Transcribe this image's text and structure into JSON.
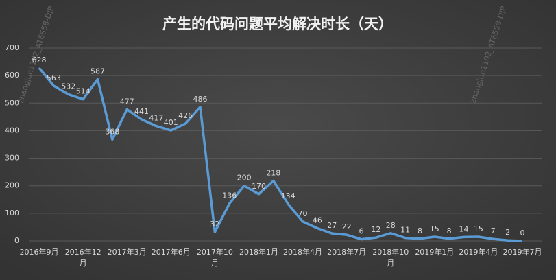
{
  "chart_data": {
    "type": "line",
    "title": "产生的代码问题平均解决时长（天）",
    "watermark": "zhangjun1102_AT6558-DJP",
    "categories": [
      "2016年9月",
      null,
      null,
      "2016年12月",
      null,
      null,
      "2017年3月",
      null,
      null,
      "2017年6月",
      null,
      null,
      "2017年10月",
      null,
      null,
      "2018年1月",
      null,
      null,
      "2018年4月",
      null,
      null,
      "2018年7月",
      null,
      null,
      "2018年10月",
      null,
      null,
      "2019年1月",
      null,
      null,
      "2019年4月",
      null,
      null,
      "2019年7月"
    ],
    "series": [
      {
        "name": "平均解决时长",
        "color": "#5b9bd5",
        "values": [
          628,
          563,
          532,
          514,
          587,
          368,
          477,
          441,
          417,
          401,
          426,
          486,
          32,
          136,
          200,
          170,
          218,
          134,
          70,
          46,
          27,
          22,
          6,
          12,
          28,
          11,
          8,
          15,
          8,
          14,
          15,
          7,
          2,
          0
        ]
      }
    ],
    "ylim": [
      0,
      700
    ],
    "yticks": [
      0,
      100,
      200,
      300,
      400,
      500,
      600,
      700
    ],
    "grid": true,
    "legend": false
  }
}
